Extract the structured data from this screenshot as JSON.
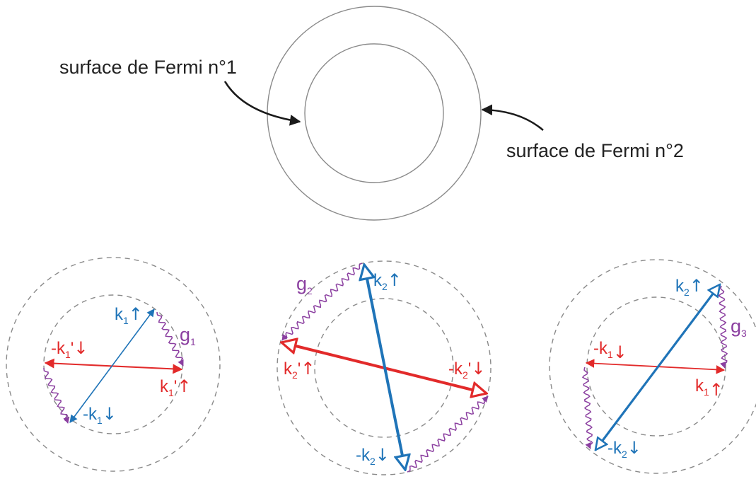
{
  "top": {
    "label_1": "surface de Fermi n°1",
    "label_2": "surface de Fermi n°2"
  },
  "colors": {
    "blue": "#1f74b8",
    "red": "#e22a2a",
    "purple": "#8b3fa0",
    "gray": "#8a8a8a",
    "dash": "#8a8a8a"
  },
  "panels": [
    {
      "coupling": "g",
      "coupling_index": "1",
      "blue_top": {
        "sign": "",
        "k": "k",
        "index": "1",
        "prime": "",
        "spin": "↑"
      },
      "blue_bottom": {
        "sign": "-",
        "k": "k",
        "index": "1",
        "prime": "",
        "spin": "↓"
      },
      "red_left": {
        "sign": "-",
        "k": "k",
        "index": "1",
        "prime": "'",
        "spin": "↓"
      },
      "red_right": {
        "sign": "",
        "k": "k",
        "index": "1",
        "prime": "'",
        "spin": "↑"
      }
    },
    {
      "coupling": "g",
      "coupling_index": "2",
      "blue_top": {
        "sign": "",
        "k": "k",
        "index": "2",
        "prime": "",
        "spin": "↑"
      },
      "blue_bottom": {
        "sign": "-",
        "k": "k",
        "index": "2",
        "prime": "",
        "spin": "↓"
      },
      "red_left": {
        "sign": "",
        "k": "k",
        "index": "2",
        "prime": "'",
        "spin": "↑"
      },
      "red_right": {
        "sign": "-",
        "k": "k",
        "index": "2",
        "prime": "'",
        "spin": "↓"
      }
    },
    {
      "coupling": "g",
      "coupling_index": "3",
      "blue_top": {
        "sign": "",
        "k": "k",
        "index": "2",
        "prime": "",
        "spin": "↑"
      },
      "blue_bottom": {
        "sign": "-",
        "k": "k",
        "index": "2",
        "prime": "",
        "spin": "↓"
      },
      "red_left": {
        "sign": "-",
        "k": "k",
        "index": "1",
        "prime": "",
        "spin": "↓"
      },
      "red_right": {
        "sign": "",
        "k": "k",
        "index": "1",
        "prime": "",
        "spin": "↑"
      }
    }
  ]
}
